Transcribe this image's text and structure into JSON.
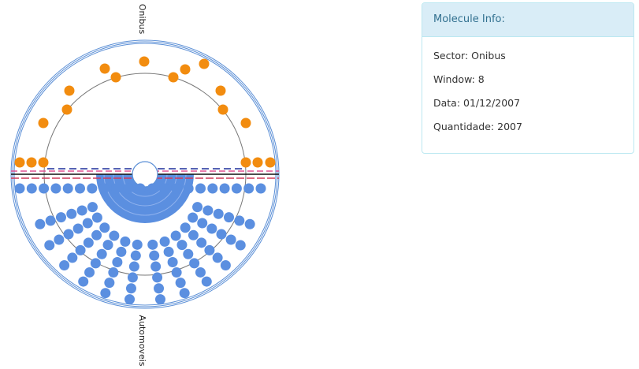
{
  "sectors": {
    "top": "Onibus",
    "bottom": "Automoveis"
  },
  "panel": {
    "title": "Molecule Info:",
    "fields": [
      "Sector: Onibus",
      "Window: 8",
      "Data: 01/12/2007",
      "Quantidade: 2007"
    ]
  }
}
